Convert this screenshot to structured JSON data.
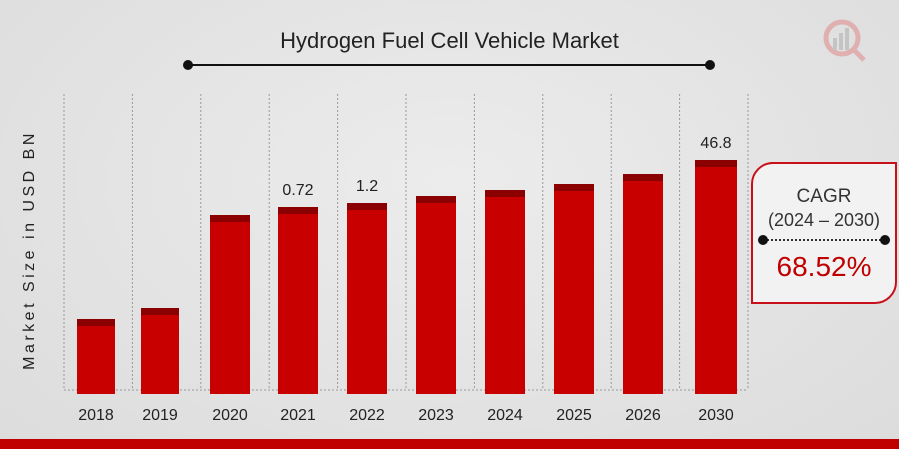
{
  "chart_data": {
    "type": "bar",
    "title": "Hydrogen Fuel Cell Vehicle Market",
    "ylabel": "Market Size in USD BN",
    "xlabel": "",
    "categories": [
      "2018",
      "2019",
      "2020",
      "2021",
      "2022",
      "2023",
      "2024",
      "2025",
      "2026",
      "2030"
    ],
    "values": [
      null,
      null,
      null,
      0.72,
      1.2,
      null,
      null,
      null,
      null,
      46.8
    ],
    "data_labels": [
      "",
      "",
      "",
      "0.72",
      "1.2",
      "",
      "",
      "",
      "",
      "46.8"
    ],
    "colors": {
      "bar": "#c80000",
      "cap": "#8b0000",
      "accent": "#c00000"
    }
  },
  "cagr": {
    "label": "CAGR",
    "period": "(2024 – 2030)",
    "value": "68.52%"
  }
}
